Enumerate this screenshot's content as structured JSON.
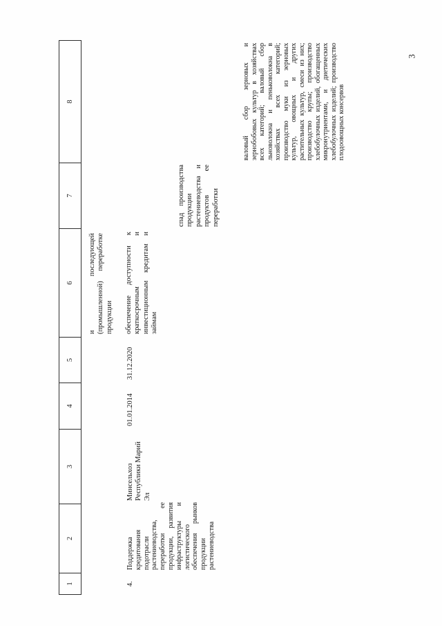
{
  "page": {
    "number": "3"
  },
  "table": {
    "header_numbers": [
      "1",
      "2",
      "3",
      "4",
      "5",
      "6",
      "7",
      "8"
    ],
    "continuation_row": {
      "col6": "и последующей (промышленной) переработке продукции"
    },
    "row4": {
      "col1": "4.",
      "col2": "Поддержка кредитования подотрасли растениеводства, переработки ее продукции, развития инфраструктуры и логистического обеспечения рынков продукции растениеводства",
      "col3": "Минсельхоз Республики Марий Эл",
      "col4": "01.01.2014",
      "col5": "31.12.2020",
      "col6": "обеспечение доступности к краткосрочным и инвестиционным кредитам и займам",
      "col7": "спад производства продукции растениеводства и продуктов ее переработки",
      "col8": "валовый сбор зерновых и зернобобовых культур в хозяйствах всех категорий; валовый сбор льноволокна и пеньковолокна в хозяйствах всех категорий; производство муки из зерновых культур, овощных и других растительных культур, смеси из них; производство крупы; производство хлебобулочных изделий, обогащенных микронутриентами, и диетических хлебобулочных изделий; производство плодоовощных консервов"
    }
  }
}
